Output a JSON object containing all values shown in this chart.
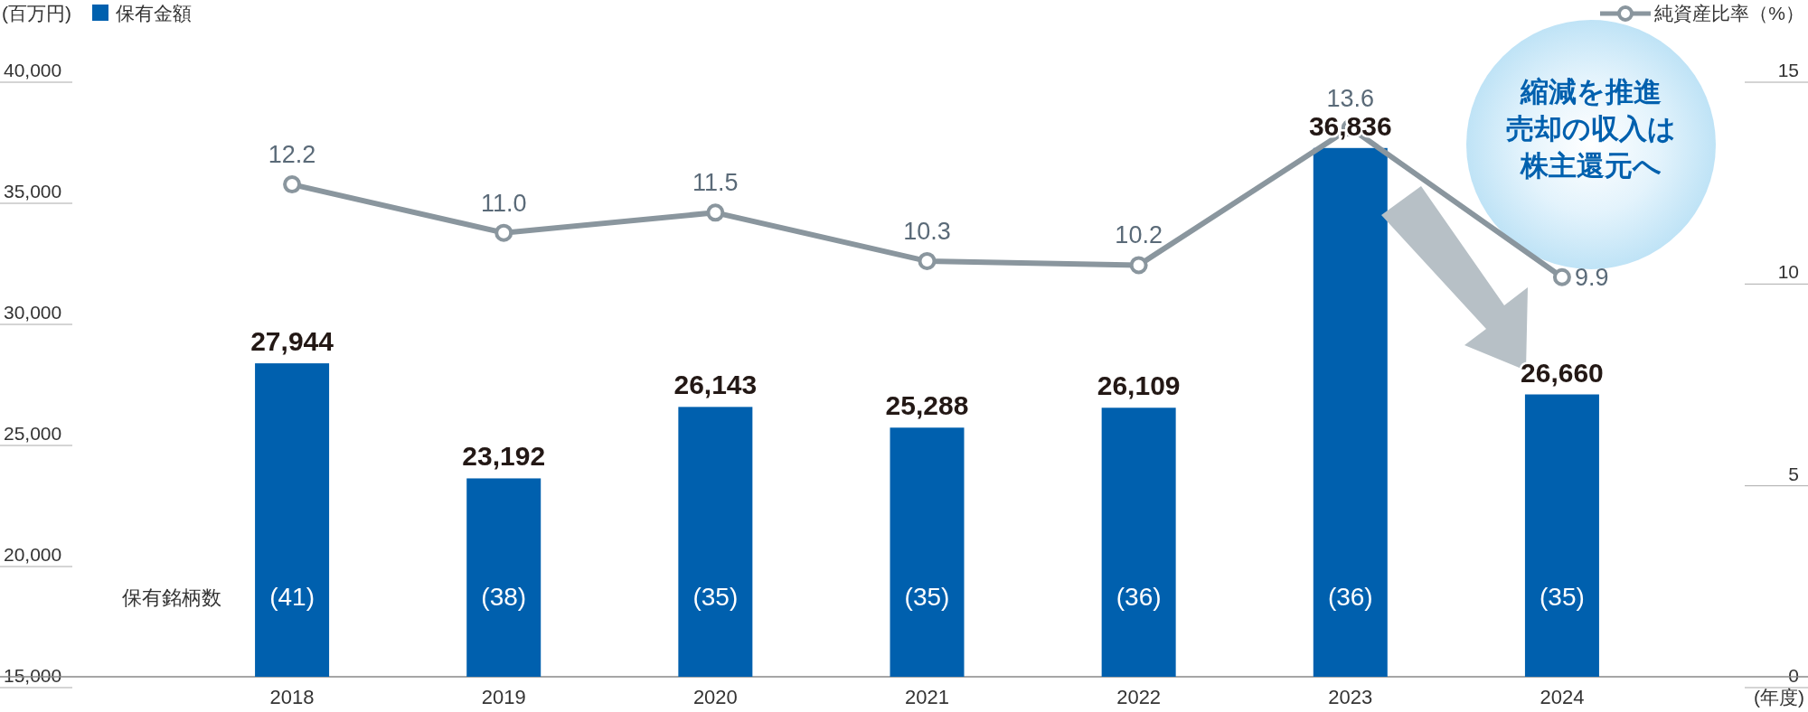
{
  "chart_data": {
    "type": "bar",
    "ylabel": "(百万円)",
    "xlabel": "(年度)",
    "categories": [
      "2018",
      "2019",
      "2020",
      "2021",
      "2022",
      "2023",
      "2024"
    ],
    "series": [
      {
        "name": "保有金額",
        "color": "#0060ae",
        "values": [
          27944,
          23192,
          26143,
          25288,
          26109,
          36836,
          26660
        ],
        "value_labels": [
          "27,944",
          "23,192",
          "26,143",
          "25,288",
          "26,109",
          "36,836",
          "26,660"
        ]
      },
      {
        "name": "純資産比率（%）",
        "type": "line",
        "axis": "y2",
        "color": "#8a969e",
        "marker": "circle",
        "values": [
          12.2,
          11.0,
          11.5,
          10.3,
          10.2,
          13.6,
          9.9
        ],
        "value_labels": [
          "12.2",
          "11.0",
          "11.5",
          "10.3",
          "10.2",
          "13.6",
          "9.9"
        ]
      }
    ],
    "ylim": [
      15000,
      40000
    ],
    "yticks": [
      {
        "value": 15000,
        "label": "15,000"
      },
      {
        "value": 20000,
        "label": "20,000"
      },
      {
        "value": 25000,
        "label": "25,000"
      },
      {
        "value": 30000,
        "label": "30,000"
      },
      {
        "value": 35000,
        "label": "35,000"
      },
      {
        "value": 40000,
        "label": "40,000"
      }
    ],
    "y2lim": [
      0,
      15
    ],
    "y2ticks": [
      0,
      5,
      10,
      15
    ],
    "legend": "top",
    "grid": false,
    "annotations": [
      "保有銘柄数",
      "(41)",
      "(38)",
      "(35)",
      "(35)",
      "(36)",
      "(36)",
      "(35)",
      "縮減を推進",
      "売却の収入は",
      "株主還元へ"
    ]
  }
}
